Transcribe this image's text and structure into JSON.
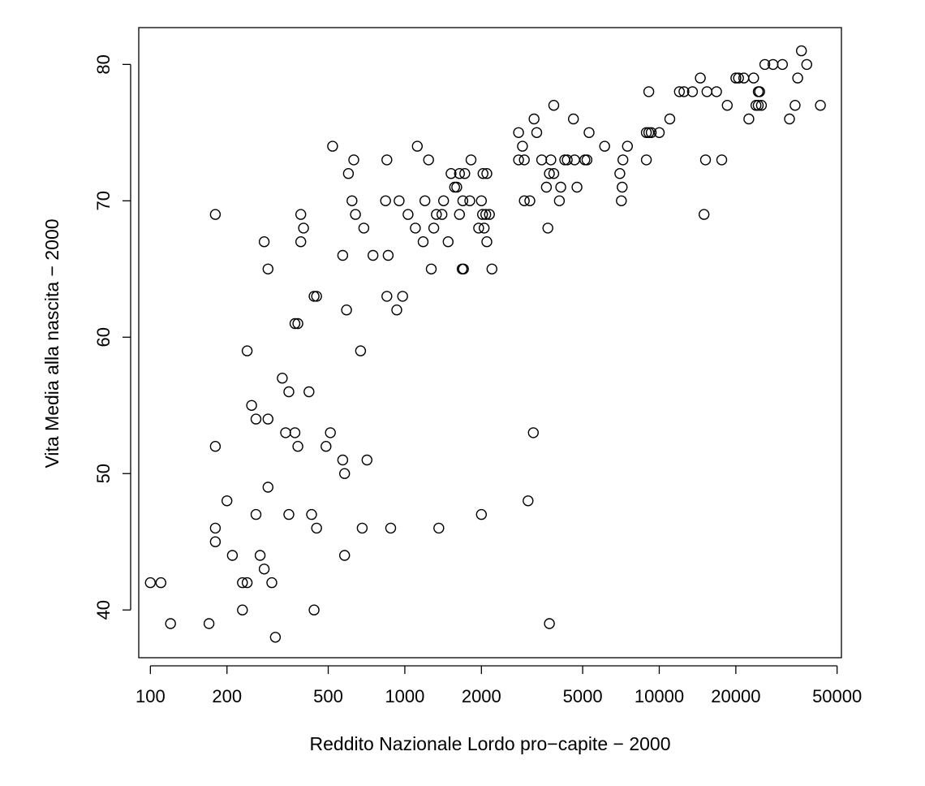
{
  "chart_data": {
    "type": "scatter",
    "title": "",
    "xlabel": "Reddito Nazionale Lordo pro−capite − 2000",
    "ylabel": "Vita Media alla nascita − 2000",
    "x_scale": "log",
    "xlim": [
      90,
      52000
    ],
    "ylim": [
      36.5,
      82.7
    ],
    "x_ticks": [
      100,
      200,
      500,
      1000,
      2000,
      5000,
      10000,
      20000,
      50000
    ],
    "x_tick_labels": [
      "100",
      "200",
      "500",
      "1000",
      "2000",
      "5000",
      "10000",
      "20000",
      "50000"
    ],
    "y_ticks": [
      40,
      50,
      60,
      70,
      80
    ],
    "y_tick_labels": [
      "40",
      "50",
      "60",
      "70",
      "80"
    ],
    "grid": false,
    "marker": "open-circle",
    "points": [
      [
        100,
        42
      ],
      [
        110,
        42
      ],
      [
        120,
        39
      ],
      [
        170,
        39
      ],
      [
        180,
        45
      ],
      [
        180,
        46
      ],
      [
        180,
        52
      ],
      [
        180,
        69
      ],
      [
        200,
        48
      ],
      [
        210,
        44
      ],
      [
        230,
        40
      ],
      [
        230,
        42
      ],
      [
        240,
        42
      ],
      [
        240,
        59
      ],
      [
        250,
        55
      ],
      [
        260,
        47
      ],
      [
        260,
        54
      ],
      [
        270,
        44
      ],
      [
        280,
        43
      ],
      [
        280,
        67
      ],
      [
        290,
        49
      ],
      [
        290,
        54
      ],
      [
        290,
        65
      ],
      [
        300,
        42
      ],
      [
        310,
        38
      ],
      [
        330,
        57
      ],
      [
        340,
        53
      ],
      [
        350,
        47
      ],
      [
        350,
        56
      ],
      [
        370,
        53
      ],
      [
        370,
        61
      ],
      [
        380,
        52
      ],
      [
        380,
        61
      ],
      [
        390,
        67
      ],
      [
        390,
        69
      ],
      [
        400,
        68
      ],
      [
        420,
        56
      ],
      [
        430,
        47
      ],
      [
        440,
        40
      ],
      [
        440,
        63
      ],
      [
        450,
        46
      ],
      [
        450,
        63
      ],
      [
        490,
        52
      ],
      [
        510,
        53
      ],
      [
        520,
        74
      ],
      [
        570,
        51
      ],
      [
        570,
        66
      ],
      [
        580,
        44
      ],
      [
        580,
        50
      ],
      [
        590,
        62
      ],
      [
        600,
        72
      ],
      [
        620,
        70
      ],
      [
        630,
        73
      ],
      [
        640,
        69
      ],
      [
        670,
        59
      ],
      [
        680,
        46
      ],
      [
        690,
        68
      ],
      [
        710,
        51
      ],
      [
        750,
        66
      ],
      [
        840,
        70
      ],
      [
        850,
        73
      ],
      [
        850,
        63
      ],
      [
        860,
        66
      ],
      [
        880,
        46
      ],
      [
        930,
        62
      ],
      [
        950,
        70
      ],
      [
        980,
        63
      ],
      [
        1030,
        69
      ],
      [
        1100,
        68
      ],
      [
        1120,
        74
      ],
      [
        1180,
        67
      ],
      [
        1200,
        70
      ],
      [
        1240,
        73
      ],
      [
        1270,
        65
      ],
      [
        1300,
        68
      ],
      [
        1330,
        69
      ],
      [
        1360,
        46
      ],
      [
        1400,
        69
      ],
      [
        1420,
        70
      ],
      [
        1480,
        67
      ],
      [
        1520,
        72
      ],
      [
        1570,
        71
      ],
      [
        1600,
        71
      ],
      [
        1640,
        72
      ],
      [
        1640,
        69
      ],
      [
        1680,
        65
      ],
      [
        1690,
        70
      ],
      [
        1700,
        65
      ],
      [
        1720,
        72
      ],
      [
        1800,
        70
      ],
      [
        1820,
        73
      ],
      [
        1950,
        68
      ],
      [
        2000,
        70
      ],
      [
        2000,
        47
      ],
      [
        2020,
        69
      ],
      [
        2030,
        72
      ],
      [
        2050,
        68
      ],
      [
        2080,
        69
      ],
      [
        2100,
        67
      ],
      [
        2100,
        72
      ],
      [
        2150,
        69
      ],
      [
        2200,
        65
      ],
      [
        2800,
        73
      ],
      [
        2800,
        75
      ],
      [
        2900,
        74
      ],
      [
        2950,
        70
      ],
      [
        2950,
        73
      ],
      [
        3050,
        48
      ],
      [
        3100,
        70
      ],
      [
        3200,
        53
      ],
      [
        3220,
        76
      ],
      [
        3300,
        75
      ],
      [
        3450,
        73
      ],
      [
        3600,
        71
      ],
      [
        3650,
        68
      ],
      [
        3700,
        39
      ],
      [
        3700,
        72
      ],
      [
        3750,
        73
      ],
      [
        3850,
        72
      ],
      [
        3850,
        77
      ],
      [
        4050,
        70
      ],
      [
        4100,
        71
      ],
      [
        4250,
        73
      ],
      [
        4350,
        73
      ],
      [
        4600,
        76
      ],
      [
        4650,
        73
      ],
      [
        4750,
        71
      ],
      [
        5100,
        73
      ],
      [
        5200,
        73
      ],
      [
        5300,
        75
      ],
      [
        6100,
        74
      ],
      [
        7000,
        72
      ],
      [
        7100,
        70
      ],
      [
        7150,
        71
      ],
      [
        7200,
        73
      ],
      [
        7500,
        74
      ],
      [
        8900,
        73
      ],
      [
        8900,
        75
      ],
      [
        9100,
        75
      ],
      [
        9100,
        78
      ],
      [
        9300,
        75
      ],
      [
        10000,
        75
      ],
      [
        11000,
        76
      ],
      [
        12000,
        78
      ],
      [
        12500,
        78
      ],
      [
        13500,
        78
      ],
      [
        14500,
        79
      ],
      [
        15000,
        69
      ],
      [
        15200,
        73
      ],
      [
        15400,
        78
      ],
      [
        16800,
        78
      ],
      [
        17600,
        73
      ],
      [
        18500,
        77
      ],
      [
        20000,
        79
      ],
      [
        20500,
        79
      ],
      [
        21500,
        79
      ],
      [
        22500,
        76
      ],
      [
        23500,
        79
      ],
      [
        24000,
        77
      ],
      [
        24500,
        77
      ],
      [
        24500,
        78
      ],
      [
        24800,
        78
      ],
      [
        25200,
        77
      ],
      [
        26000,
        80
      ],
      [
        28000,
        80
      ],
      [
        30500,
        80
      ],
      [
        32500,
        76
      ],
      [
        34200,
        77
      ],
      [
        35000,
        79
      ],
      [
        36200,
        81
      ],
      [
        38000,
        80
      ],
      [
        43000,
        77
      ]
    ]
  }
}
